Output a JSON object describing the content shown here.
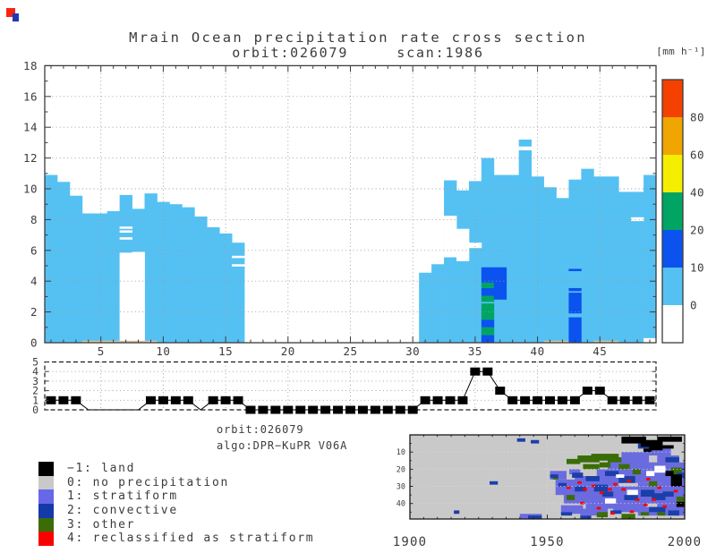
{
  "window": {
    "title_line1": "Mrain Ocean precipitation rate cross section",
    "title_line2": "orbit:026079     scan:1986"
  },
  "colorbar": {
    "unit": "[mm h⁻¹]",
    "labels": [
      0,
      10,
      20,
      40,
      60,
      80
    ],
    "colors_bottom_to_top": [
      "#ffffff",
      "#55c1f3",
      "#0b52ef",
      "#00a563",
      "#f6ee00",
      "#f0a500",
      "#f54100"
    ]
  },
  "annotation": {
    "line1": "orbit:026079",
    "line2": "algo:DPR−KuPR V06A"
  },
  "legend": {
    "items": [
      {
        "label": "−1: land",
        "color": "#000000"
      },
      {
        "label": "0: no precipitation",
        "color": "#c9c9c9"
      },
      {
        "label": "1: stratiform",
        "color": "#6767e8"
      },
      {
        "label": "2: convective",
        "color": "#1639a8"
      },
      {
        "label": "3: other",
        "color": "#3b6d07"
      },
      {
        "label": "4: reclassified as stratiform",
        "color": "#fa0000"
      }
    ]
  },
  "corner_icon": {
    "red": "#f82512",
    "blue": "#2038b8"
  },
  "chart_data": [
    {
      "type": "heatmap",
      "title": "Mrain Ocean precipitation rate cross section",
      "subtitle": "orbit:026079 scan:1986",
      "unit": "mm h-1",
      "x_range": [
        1,
        49
      ],
      "y_range_km": [
        0,
        18
      ],
      "x_ticks": [
        5,
        10,
        15,
        20,
        25,
        30,
        35,
        40,
        45
      ],
      "y_ticks": [
        0,
        2,
        4,
        6,
        8,
        10,
        12,
        14,
        16,
        18
      ],
      "palette": {
        "light": "#55c1f3",
        "mid": "#0b52ef",
        "high": "#00a563",
        "surface": "#d9c49b"
      },
      "value_bins_mm_per_h": {
        "light": "0-10",
        "mid": "10-20",
        "high": "20-40"
      },
      "columns": [
        {
          "top": 10.9
        },
        {
          "top": 10.45
        },
        {
          "top": 9.55
        },
        {
          "top": 8.4
        },
        {
          "top": 8.4
        },
        {
          "top": 8.55
        },
        {
          "top": 9.6,
          "gaps": [
            [
              0,
              5.85
            ],
            [
              6.7,
              6.85
            ],
            [
              7.15,
              7.3
            ],
            [
              7.4,
              7.55
            ]
          ]
        },
        {
          "top": 8.7,
          "gaps": [
            [
              0,
              5.9
            ]
          ]
        },
        {
          "top": 9.7
        },
        {
          "top": 9.15
        },
        {
          "top": 9.0
        },
        {
          "top": 8.8
        },
        {
          "top": 8.2
        },
        {
          "top": 7.5
        },
        {
          "top": 7.1
        },
        {
          "top": 6.5,
          "gaps": [
            [
              4.95,
              5.1
            ],
            [
              5.5,
              5.65
            ]
          ]
        },
        {
          "top": 0
        },
        {
          "top": 0
        },
        {
          "top": 0
        },
        {
          "top": 0
        },
        {
          "top": 0
        },
        {
          "top": 0
        },
        {
          "top": 0
        },
        {
          "top": 0
        },
        {
          "top": 0
        },
        {
          "top": 0
        },
        {
          "top": 0
        },
        {
          "top": 0
        },
        {
          "top": 0
        },
        {
          "top": 0
        },
        {
          "top": 4.55
        },
        {
          "top": 5.1
        },
        {
          "top": 10.55,
          "gaps": [
            [
              5.55,
              8.25
            ]
          ]
        },
        {
          "top": 9.9,
          "gaps": [
            [
              5.3,
              7.4
            ]
          ]
        },
        {
          "top": 10.5,
          "gaps": [
            [
              6.15,
              6.5
            ]
          ]
        },
        {
          "top": 12.0,
          "cores": [
            [
              0,
              0.5,
              "b"
            ],
            [
              0.5,
              1.0,
              "g"
            ],
            [
              1.0,
              1.5,
              "b"
            ],
            [
              1.5,
              2.55,
              "g"
            ],
            [
              2.65,
              3.05,
              "g"
            ],
            [
              3.05,
              3.55,
              "b"
            ],
            [
              3.55,
              3.9,
              "g"
            ],
            [
              3.9,
              4.9,
              "b"
            ]
          ]
        },
        {
          "top": 10.9,
          "cores": [
            [
              2.8,
              4.9,
              "b"
            ]
          ]
        },
        {
          "top": 10.9
        },
        {
          "top": 13.2,
          "gaps": [
            [
              12.5,
              12.75
            ]
          ]
        },
        {
          "top": 10.8
        },
        {
          "top": 10.1
        },
        {
          "top": 9.4
        },
        {
          "top": 10.6,
          "cores": [
            [
              0,
              1.65,
              "b"
            ],
            [
              1.9,
              3.25,
              "b"
            ],
            [
              3.35,
              3.55,
              "b"
            ],
            [
              4.65,
              4.8,
              "b"
            ]
          ]
        },
        {
          "top": 11.3
        },
        {
          "top": 10.8
        },
        {
          "top": 10.8
        },
        {
          "top": 9.8
        },
        {
          "top": 9.8,
          "gaps": [
            [
              7.9,
              8.15
            ]
          ]
        },
        {
          "top": 10.9,
          "gaps": [
            [
              0,
              0.3
            ]
          ]
        }
      ],
      "tan_bottom_cols": [
        [
          4,
          9
        ],
        [
          41,
          42
        ],
        [
          45,
          46
        ]
      ]
    },
    {
      "type": "line",
      "title": "rain type flag per ray",
      "x_range": [
        1,
        49
      ],
      "y_ticks": [
        0,
        1,
        2,
        3,
        4,
        5
      ],
      "marker": "square",
      "values": [
        1,
        1,
        1,
        null,
        null,
        null,
        null,
        null,
        1,
        1,
        1,
        1,
        null,
        1,
        1,
        1,
        0,
        0,
        0,
        0,
        0,
        0,
        0,
        0,
        0,
        0,
        0,
        0,
        0,
        0,
        1,
        1,
        1,
        1,
        4,
        4,
        2,
        1,
        1,
        1,
        1,
        1,
        1,
        2,
        2,
        1,
        1,
        1,
        1
      ]
    },
    {
      "type": "heatmap",
      "title": "swath rain type map",
      "x_ticks": [
        1900,
        1950,
        2000
      ],
      "y_ticks": [
        10,
        20,
        30,
        40
      ],
      "x_range": [
        1900,
        2000
      ],
      "y_range": [
        0,
        49
      ],
      "background": "#c9c9c9",
      "palette": {
        "S": "#6b6be0",
        "C": "#1a3fa8",
        "G": "#3b6d07",
        "K": "#000000",
        "R": "#fa0000",
        "W": "#ffffff"
      },
      "cells": [
        [
          1951,
          21,
          6,
          5,
          "S"
        ],
        [
          1953,
          26,
          9,
          9,
          "S"
        ],
        [
          1956,
          30,
          14,
          10,
          "S"
        ],
        [
          1960,
          24,
          16,
          12,
          "S"
        ],
        [
          1964,
          34,
          18,
          9,
          "S"
        ],
        [
          1968,
          20,
          10,
          8,
          "S"
        ],
        [
          1970,
          30,
          16,
          10,
          "S"
        ],
        [
          1972,
          14,
          14,
          10,
          "S"
        ],
        [
          1977,
          10,
          10,
          8,
          "S"
        ],
        [
          1980,
          16,
          14,
          12,
          "S"
        ],
        [
          1983,
          28,
          14,
          12,
          "S"
        ],
        [
          1987,
          6,
          8,
          6,
          "S"
        ],
        [
          1990,
          12,
          8,
          10,
          "S"
        ],
        [
          1992,
          22,
          8,
          14,
          "S"
        ],
        [
          1955,
          41,
          8,
          5,
          "S"
        ],
        [
          1962,
          43,
          10,
          4,
          "S"
        ],
        [
          1974,
          40,
          12,
          5,
          "S"
        ],
        [
          1983,
          42,
          12,
          5,
          "S"
        ],
        [
          1990,
          38,
          8,
          6,
          "S"
        ],
        [
          1996,
          30,
          4,
          10,
          "S"
        ],
        [
          1996,
          16,
          4,
          8,
          "S"
        ],
        [
          1940,
          46,
          8,
          3,
          "S"
        ],
        [
          1958,
          20,
          4,
          3,
          "S"
        ],
        [
          1996,
          42,
          4,
          5,
          "S"
        ],
        [
          1957,
          14,
          5,
          3,
          "G"
        ],
        [
          1961,
          12,
          8,
          4,
          "G"
        ],
        [
          1966,
          11,
          10,
          4,
          "G"
        ],
        [
          1972,
          13,
          5,
          3,
          "G"
        ],
        [
          1963,
          17,
          6,
          3,
          "G"
        ],
        [
          1969,
          16,
          4,
          3,
          "G"
        ],
        [
          1976,
          17,
          4,
          3,
          "G"
        ],
        [
          1981,
          20,
          3,
          3,
          "G"
        ],
        [
          1987,
          27,
          3,
          3,
          "G"
        ],
        [
          1995,
          19,
          4,
          5,
          "G"
        ],
        [
          1996,
          25,
          3,
          3,
          "G"
        ],
        [
          1957,
          35,
          3,
          3,
          "G"
        ],
        [
          1968,
          45,
          4,
          3,
          "G"
        ],
        [
          1977,
          46,
          5,
          3,
          "G"
        ],
        [
          1984,
          45,
          3,
          2,
          "G"
        ],
        [
          1952,
          24,
          2,
          2,
          "G"
        ],
        [
          1990,
          45,
          3,
          2,
          "G"
        ],
        [
          1997,
          36,
          3,
          3,
          "G"
        ],
        [
          1939,
          2,
          3,
          2,
          "C"
        ],
        [
          1944,
          3,
          3,
          2,
          "C"
        ],
        [
          1916,
          44,
          2,
          2,
          "C"
        ],
        [
          1929,
          27,
          3,
          2,
          "C"
        ],
        [
          1943,
          47,
          5,
          3,
          "C"
        ],
        [
          1951,
          23,
          3,
          2,
          "C"
        ],
        [
          1954,
          28,
          3,
          2,
          "C"
        ],
        [
          1959,
          22,
          4,
          3,
          "C"
        ],
        [
          1964,
          24,
          5,
          3,
          "C"
        ],
        [
          1960,
          30,
          4,
          3,
          "C"
        ],
        [
          1967,
          29,
          5,
          4,
          "C"
        ],
        [
          1971,
          21,
          5,
          3,
          "C"
        ],
        [
          1976,
          24,
          6,
          4,
          "C"
        ],
        [
          1970,
          33,
          4,
          3,
          "C"
        ],
        [
          1978,
          35,
          5,
          3,
          "C"
        ],
        [
          1984,
          32,
          5,
          4,
          "C"
        ],
        [
          1988,
          34,
          5,
          4,
          "C"
        ],
        [
          1992,
          33,
          4,
          3,
          "C"
        ],
        [
          1987,
          42,
          6,
          3,
          "C"
        ],
        [
          1994,
          44,
          4,
          3,
          "C"
        ],
        [
          1983,
          5,
          4,
          3,
          "C"
        ],
        [
          1993,
          13,
          5,
          3,
          "C"
        ],
        [
          1997,
          22,
          3,
          3,
          "C"
        ],
        [
          1955,
          45,
          4,
          2,
          "C"
        ],
        [
          1962,
          47,
          4,
          2,
          "C"
        ],
        [
          1973,
          44,
          4,
          2,
          "C"
        ],
        [
          1977,
          1,
          9,
          4,
          "K"
        ],
        [
          1984,
          3,
          8,
          4,
          "K"
        ],
        [
          1990,
          1,
          9,
          3,
          "K"
        ],
        [
          1987,
          6,
          5,
          3,
          "K"
        ],
        [
          1992,
          6,
          4,
          2,
          "K"
        ],
        [
          1995,
          23,
          4,
          7,
          "K"
        ],
        [
          1993,
          21,
          3,
          3,
          "K"
        ],
        [
          1997,
          39,
          3,
          3,
          "K"
        ],
        [
          1985,
          8,
          3,
          2,
          "K"
        ],
        [
          1971,
          37,
          4,
          3,
          "W"
        ],
        [
          1979,
          32,
          4,
          3,
          "W"
        ],
        [
          1989,
          18,
          4,
          4,
          "W"
        ],
        [
          1975,
          23,
          3,
          2,
          "W"
        ],
        [
          1986,
          21,
          3,
          3,
          "W"
        ]
      ],
      "red_cells": [
        [
          1957,
          30
        ],
        [
          1961,
          27
        ],
        [
          1963,
          31
        ],
        [
          1966,
          29
        ],
        [
          1969,
          33
        ],
        [
          1972,
          31
        ],
        [
          1974,
          28
        ],
        [
          1977,
          31
        ],
        [
          1979,
          26
        ],
        [
          1982,
          37
        ],
        [
          1985,
          40
        ],
        [
          1988,
          37
        ],
        [
          1992,
          41
        ],
        [
          1968,
          42
        ],
        [
          1973,
          45
        ],
        [
          1986,
          25
        ],
        [
          1990,
          30
        ],
        [
          1996,
          32
        ],
        [
          1962,
          39
        ],
        [
          1980,
          44
        ]
      ]
    }
  ]
}
